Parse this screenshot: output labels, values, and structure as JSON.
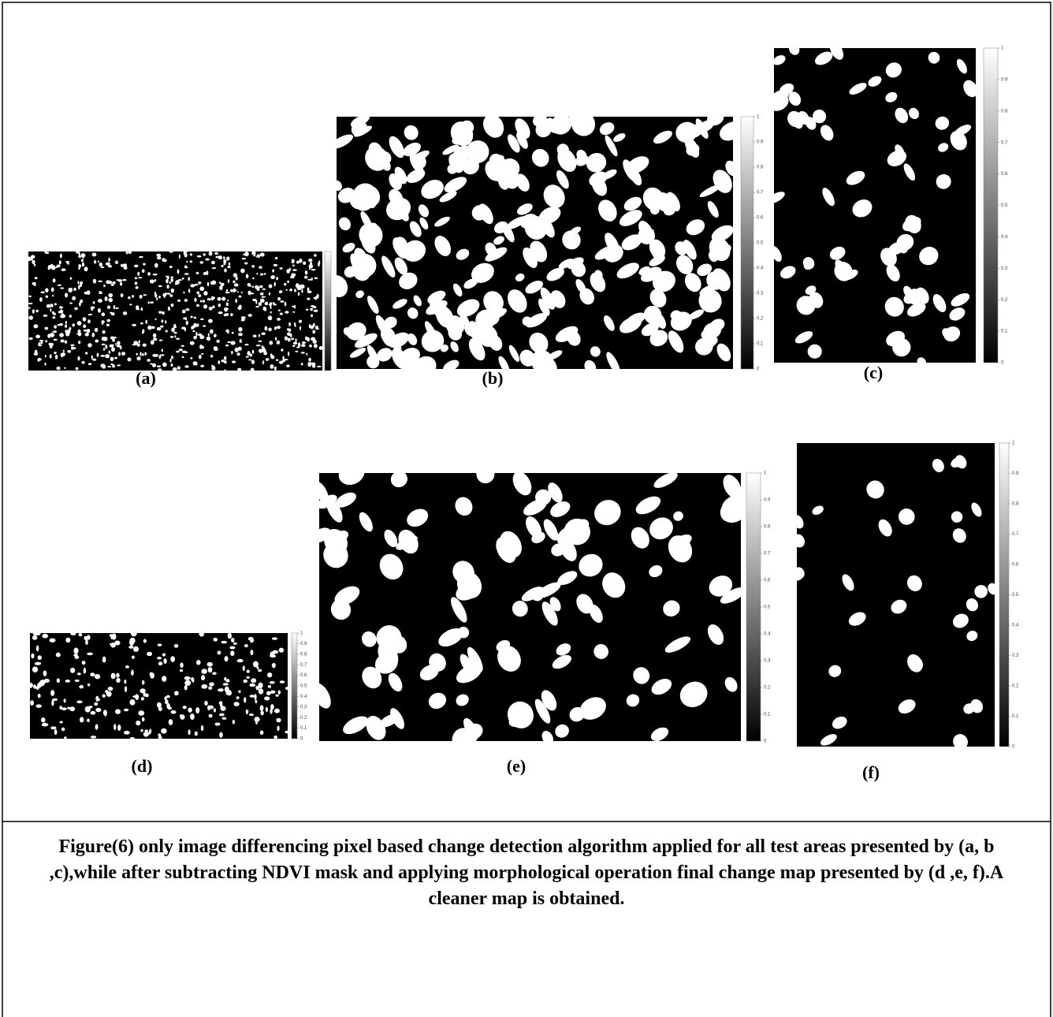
{
  "panels": [
    {
      "label": "(a)"
    },
    {
      "label": "(b)"
    },
    {
      "label": "(c)"
    },
    {
      "label": "(d)"
    },
    {
      "label": "(e)"
    },
    {
      "label": "(f)"
    }
  ],
  "colorbar_ticks": [
    "0",
    "0.1",
    "0.2",
    "0.3",
    "0.4",
    "0.5",
    "0.6",
    "0.7",
    "0.8",
    "0.9",
    "1"
  ],
  "caption": "Figure(6) only image differencing pixel based change detection algorithm applied for all test areas presented by (a, b ,c),while after subtracting NDVI mask and applying morphological operation final change map presented by (d ,e, f).A cleaner map is obtained."
}
